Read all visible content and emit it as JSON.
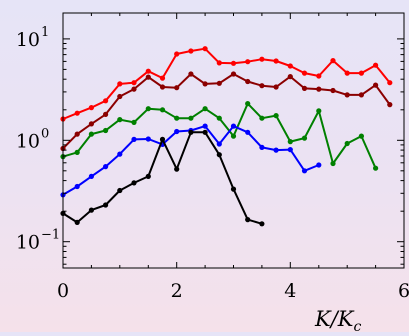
{
  "chart_data": {
    "type": "line",
    "title": "",
    "xlabel": "K/K_c",
    "ylabel": "",
    "xscale": "linear",
    "yscale": "log",
    "xlim": [
      0,
      6
    ],
    "ylim": [
      0.055,
      18
    ],
    "grid": false,
    "legend": "none",
    "x_ticks": [
      {
        "value": 0,
        "label": "0"
      },
      {
        "value": 2,
        "label": "2"
      },
      {
        "value": 4,
        "label": "4"
      },
      {
        "value": 6,
        "label": "6"
      }
    ],
    "y_ticks": [
      {
        "value": 0.1,
        "base": "10",
        "exp": "−1"
      },
      {
        "value": 1,
        "base": "10",
        "exp": "0"
      },
      {
        "value": 10,
        "base": "10",
        "exp": "1"
      }
    ],
    "series": [
      {
        "color": "#ff0000",
        "points": [
          [
            0.0,
            1.62
          ],
          [
            0.25,
            1.85
          ],
          [
            0.5,
            2.1
          ],
          [
            0.75,
            2.45
          ],
          [
            1.0,
            3.6
          ],
          [
            1.25,
            3.7
          ],
          [
            1.5,
            4.8
          ],
          [
            1.75,
            4.1
          ],
          [
            2.0,
            7.1
          ],
          [
            2.25,
            7.6
          ],
          [
            2.5,
            8.0
          ],
          [
            2.75,
            5.8
          ],
          [
            3.0,
            5.75
          ],
          [
            3.25,
            5.95
          ],
          [
            3.5,
            6.3
          ],
          [
            3.75,
            6.05
          ],
          [
            4.0,
            5.4
          ],
          [
            4.25,
            4.6
          ],
          [
            4.5,
            4.3
          ],
          [
            4.75,
            6.1
          ],
          [
            5.0,
            4.6
          ],
          [
            5.25,
            4.6
          ],
          [
            5.5,
            5.5
          ],
          [
            5.75,
            3.7
          ]
        ]
      },
      {
        "color": "#8b0000",
        "points": [
          [
            0.0,
            0.83
          ],
          [
            0.25,
            1.15
          ],
          [
            0.5,
            1.45
          ],
          [
            0.75,
            1.8
          ],
          [
            1.0,
            2.7
          ],
          [
            1.25,
            3.2
          ],
          [
            1.5,
            4.2
          ],
          [
            1.75,
            3.35
          ],
          [
            2.0,
            3.3
          ],
          [
            2.25,
            4.5
          ],
          [
            2.5,
            3.6
          ],
          [
            2.75,
            3.65
          ],
          [
            3.0,
            4.5
          ],
          [
            3.25,
            3.8
          ],
          [
            3.5,
            3.45
          ],
          [
            3.75,
            3.35
          ],
          [
            4.0,
            4.25
          ],
          [
            4.25,
            3.25
          ],
          [
            4.5,
            3.2
          ],
          [
            4.75,
            3.1
          ],
          [
            5.0,
            2.8
          ],
          [
            5.25,
            2.8
          ],
          [
            5.5,
            3.5
          ],
          [
            5.75,
            2.25
          ]
        ]
      },
      {
        "color": "#008000",
        "points": [
          [
            0.0,
            0.69
          ],
          [
            0.25,
            0.76
          ],
          [
            0.5,
            1.15
          ],
          [
            0.75,
            1.25
          ],
          [
            1.0,
            1.6
          ],
          [
            1.25,
            1.5
          ],
          [
            1.5,
            2.05
          ],
          [
            1.75,
            2.0
          ],
          [
            2.0,
            1.65
          ],
          [
            2.25,
            1.65
          ],
          [
            2.5,
            2.05
          ],
          [
            2.75,
            1.65
          ],
          [
            3.0,
            1.1
          ],
          [
            3.25,
            2.3
          ],
          [
            3.5,
            1.65
          ],
          [
            3.75,
            1.75
          ],
          [
            4.0,
            0.97
          ],
          [
            4.25,
            1.05
          ],
          [
            4.5,
            1.95
          ],
          [
            4.75,
            0.59
          ],
          [
            5.0,
            0.93
          ],
          [
            5.25,
            1.1
          ],
          [
            5.5,
            0.53
          ]
        ]
      },
      {
        "color": "#0000ff",
        "points": [
          [
            0.0,
            0.29
          ],
          [
            0.25,
            0.35
          ],
          [
            0.5,
            0.44
          ],
          [
            0.75,
            0.55
          ],
          [
            1.0,
            0.73
          ],
          [
            1.25,
            1.02
          ],
          [
            1.5,
            1.03
          ],
          [
            1.75,
            0.91
          ],
          [
            2.0,
            1.22
          ],
          [
            2.25,
            1.25
          ],
          [
            2.5,
            1.38
          ],
          [
            2.75,
            0.92
          ],
          [
            3.0,
            1.38
          ],
          [
            3.25,
            1.2
          ],
          [
            3.5,
            0.85
          ],
          [
            3.75,
            0.8
          ],
          [
            4.0,
            0.81
          ],
          [
            4.25,
            0.5
          ],
          [
            4.5,
            0.57
          ]
        ]
      },
      {
        "color": "#000000",
        "points": [
          [
            0.0,
            0.19
          ],
          [
            0.25,
            0.155
          ],
          [
            0.5,
            0.205
          ],
          [
            0.75,
            0.23
          ],
          [
            1.0,
            0.32
          ],
          [
            1.25,
            0.38
          ],
          [
            1.5,
            0.44
          ],
          [
            1.75,
            1.02
          ],
          [
            2.0,
            0.52
          ],
          [
            2.25,
            1.2
          ],
          [
            2.5,
            1.2
          ],
          [
            2.75,
            0.72
          ],
          [
            3.0,
            0.33
          ],
          [
            3.25,
            0.165
          ],
          [
            3.5,
            0.15
          ]
        ]
      }
    ]
  }
}
